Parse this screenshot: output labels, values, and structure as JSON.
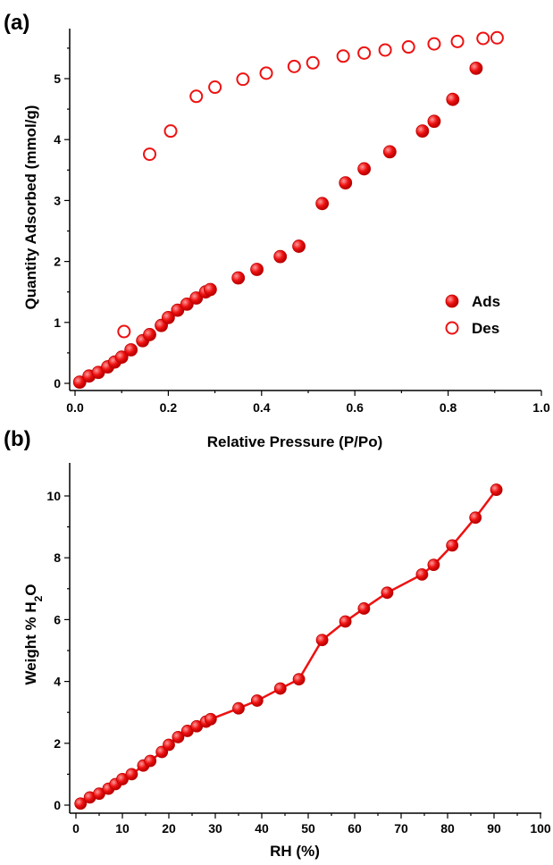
{
  "panels": {
    "a_label": "(a)",
    "b_label": "(b)"
  },
  "colors": {
    "series": "#ee1111",
    "axis": "#000000"
  },
  "chart_data": [
    {
      "type": "scatter",
      "xlabel": "Relative Pressure (P/Po)",
      "ylabel": "Quantity Adsorbed (mmol/g)",
      "xlim": [
        0.0,
        1.0
      ],
      "ylim": [
        0,
        5.75
      ],
      "xticks": [
        "0.0",
        "0.2",
        "0.4",
        "0.6",
        "0.8",
        "1.0"
      ],
      "yticks": [
        "0",
        "1",
        "2",
        "3",
        "4",
        "5"
      ],
      "grid": false,
      "legend": "right",
      "series": [
        {
          "name": "Ads",
          "marker": "filled-circle",
          "x": [
            0.01,
            0.03,
            0.05,
            0.07,
            0.085,
            0.1,
            0.12,
            0.145,
            0.16,
            0.185,
            0.2,
            0.22,
            0.24,
            0.26,
            0.28,
            0.29,
            0.35,
            0.39,
            0.44,
            0.48,
            0.53,
            0.58,
            0.62,
            0.675,
            0.745,
            0.77,
            0.81,
            0.86
          ],
          "y": [
            0.02,
            0.12,
            0.18,
            0.27,
            0.35,
            0.43,
            0.55,
            0.7,
            0.8,
            0.95,
            1.08,
            1.2,
            1.3,
            1.4,
            1.5,
            1.54,
            1.73,
            1.87,
            2.08,
            2.25,
            2.95,
            3.29,
            3.52,
            3.8,
            4.14,
            4.3,
            4.66,
            5.17
          ]
        },
        {
          "name": "Des",
          "marker": "open-circle",
          "x": [
            0.105,
            0.16,
            0.205,
            0.26,
            0.3,
            0.36,
            0.41,
            0.47,
            0.51,
            0.575,
            0.62,
            0.665,
            0.715,
            0.77,
            0.82,
            0.875,
            0.905
          ],
          "y": [
            0.85,
            3.76,
            4.14,
            4.71,
            4.86,
            4.99,
            5.09,
            5.2,
            5.26,
            5.37,
            5.42,
            5.47,
            5.52,
            5.57,
            5.61,
            5.66,
            5.67
          ]
        }
      ]
    },
    {
      "type": "line",
      "xlabel": "RH (%)",
      "ylabel": "Weight % H2O",
      "xlim": [
        0,
        100
      ],
      "ylim": [
        0,
        10.8
      ],
      "xticks": [
        "0",
        "10",
        "20",
        "30",
        "40",
        "50",
        "60",
        "70",
        "80",
        "90",
        "100"
      ],
      "yticks": [
        "0",
        "2",
        "4",
        "6",
        "8",
        "10"
      ],
      "grid": false,
      "series": [
        {
          "marker": "filled-circle",
          "x": [
            1,
            3,
            5,
            7,
            8.5,
            10,
            12,
            14.5,
            16,
            18.5,
            20,
            22,
            24,
            26,
            28,
            29,
            35,
            39,
            44,
            48,
            53,
            58,
            62,
            67,
            74.5,
            77,
            81,
            86,
            90.5
          ],
          "y": [
            0.05,
            0.25,
            0.37,
            0.53,
            0.68,
            0.84,
            1.0,
            1.28,
            1.43,
            1.72,
            1.95,
            2.2,
            2.4,
            2.55,
            2.7,
            2.78,
            3.13,
            3.38,
            3.77,
            4.07,
            5.34,
            5.94,
            6.36,
            6.87,
            7.46,
            7.77,
            8.4,
            9.3,
            10.2
          ]
        }
      ]
    }
  ]
}
